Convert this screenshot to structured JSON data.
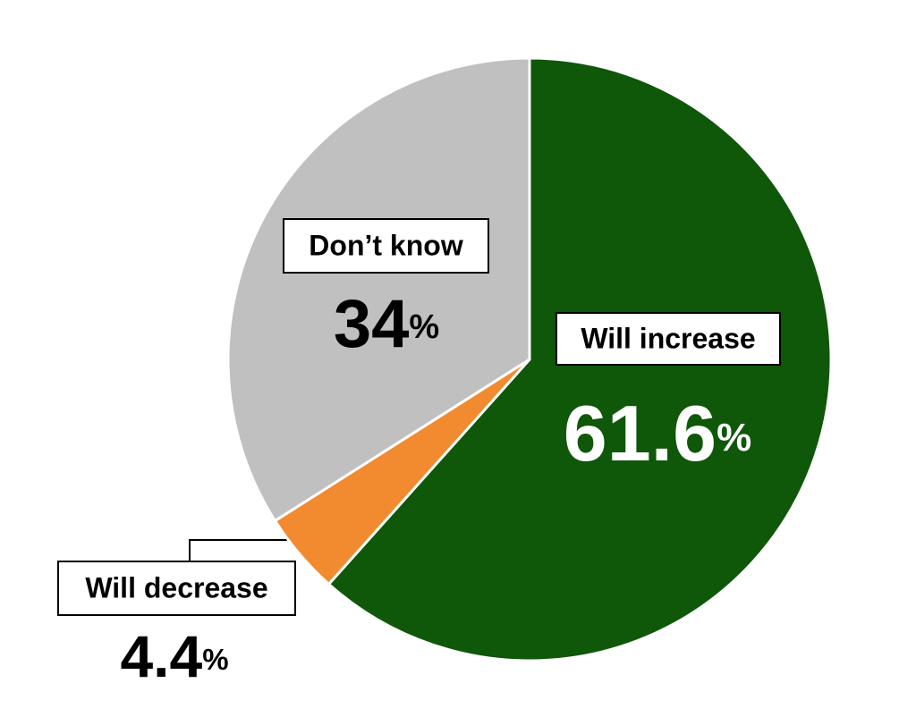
{
  "chart_data": {
    "type": "pie",
    "categories": [
      "Will increase",
      "Will decrease",
      "Don’t know"
    ],
    "values": [
      61.6,
      4.4,
      34
    ],
    "value_labels": [
      "61.6%",
      "4.4%",
      "34%"
    ],
    "colors": [
      "#0f5709",
      "#f28a30",
      "#c0c0c0"
    ]
  }
}
